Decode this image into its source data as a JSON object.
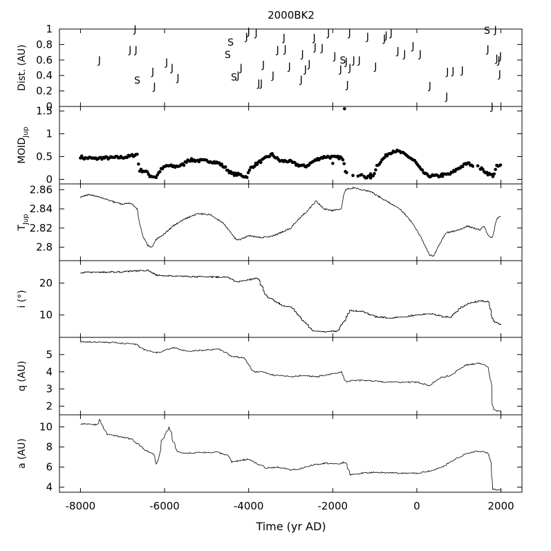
{
  "chart_data": {
    "title": "2000BK2",
    "type": "multi-panel",
    "shared_x": {
      "label": "Time (yr AD)",
      "range": [
        -8500,
        2500
      ],
      "ticks": [
        -8000,
        -6000,
        -4000,
        -2000,
        0,
        2000
      ],
      "tick_labels": [
        "-8000",
        "-6000",
        "-4000",
        "-2000",
        "0",
        "2000"
      ]
    },
    "panels": [
      {
        "type": "scatter",
        "id": "dist",
        "ylabel": "Dist. (AU)",
        "ylim": [
          0,
          1
        ],
        "yticks": [
          0,
          0.2,
          0.4,
          0.6,
          0.8,
          1
        ],
        "ytick_labels": [
          "0",
          "0.2",
          "0.4",
          "0.6",
          "0.8",
          "1"
        ],
        "markers": [
          {
            "x": -7550,
            "y": 0.6,
            "label": "J"
          },
          {
            "x": -6700,
            "y": 1.0,
            "label": "J"
          },
          {
            "x": -6820,
            "y": 0.73,
            "label": "J"
          },
          {
            "x": -6680,
            "y": 0.73,
            "label": "J"
          },
          {
            "x": -6650,
            "y": 0.34,
            "label": "S"
          },
          {
            "x": -6280,
            "y": 0.45,
            "label": "J"
          },
          {
            "x": -6240,
            "y": 0.26,
            "label": "J"
          },
          {
            "x": -5950,
            "y": 0.57,
            "label": "J"
          },
          {
            "x": -5820,
            "y": 0.5,
            "label": "J"
          },
          {
            "x": -5680,
            "y": 0.37,
            "label": "J"
          },
          {
            "x": -4500,
            "y": 0.67,
            "label": "S"
          },
          {
            "x": -4430,
            "y": 0.83,
            "label": "S"
          },
          {
            "x": -4350,
            "y": 0.38,
            "label": "S"
          },
          {
            "x": -4250,
            "y": 0.4,
            "label": "J"
          },
          {
            "x": -4180,
            "y": 0.5,
            "label": "J"
          },
          {
            "x": -4050,
            "y": 0.9,
            "label": "J"
          },
          {
            "x": -4000,
            "y": 0.97,
            "label": "J"
          },
          {
            "x": -3820,
            "y": 0.95,
            "label": "J"
          },
          {
            "x": -3760,
            "y": 0.3,
            "label": "J"
          },
          {
            "x": -3700,
            "y": 0.3,
            "label": "J"
          },
          {
            "x": -3650,
            "y": 0.54,
            "label": "J"
          },
          {
            "x": -3420,
            "y": 0.4,
            "label": "J"
          },
          {
            "x": -3310,
            "y": 0.73,
            "label": "J"
          },
          {
            "x": -3160,
            "y": 0.89,
            "label": "J"
          },
          {
            "x": -3130,
            "y": 0.74,
            "label": "J"
          },
          {
            "x": -3030,
            "y": 0.52,
            "label": "J"
          },
          {
            "x": -2750,
            "y": 0.35,
            "label": "J"
          },
          {
            "x": -2720,
            "y": 0.68,
            "label": "J"
          },
          {
            "x": -2650,
            "y": 0.48,
            "label": "J"
          },
          {
            "x": -2560,
            "y": 0.55,
            "label": "J"
          },
          {
            "x": -2440,
            "y": 0.89,
            "label": "J"
          },
          {
            "x": -2420,
            "y": 0.77,
            "label": "J"
          },
          {
            "x": -2250,
            "y": 0.76,
            "label": "J"
          },
          {
            "x": -2100,
            "y": 0.95,
            "label": "J"
          },
          {
            "x": -1950,
            "y": 0.65,
            "label": "J"
          },
          {
            "x": -1810,
            "y": 0.48,
            "label": "J"
          },
          {
            "x": -1760,
            "y": 0.6,
            "label": "S"
          },
          {
            "x": -1680,
            "y": 0.58,
            "label": "J"
          },
          {
            "x": -1650,
            "y": 0.28,
            "label": "J"
          },
          {
            "x": -1600,
            "y": 0.95,
            "label": "J"
          },
          {
            "x": -1590,
            "y": 0.5,
            "label": "J"
          },
          {
            "x": -1500,
            "y": 0.6,
            "label": "J"
          },
          {
            "x": -1370,
            "y": 0.6,
            "label": "J"
          },
          {
            "x": -1170,
            "y": 0.9,
            "label": "J"
          },
          {
            "x": -980,
            "y": 0.52,
            "label": "J"
          },
          {
            "x": -770,
            "y": 0.88,
            "label": "J"
          },
          {
            "x": -730,
            "y": 0.92,
            "label": "J"
          },
          {
            "x": -610,
            "y": 0.95,
            "label": "J"
          },
          {
            "x": -450,
            "y": 0.72,
            "label": "J"
          },
          {
            "x": -290,
            "y": 0.68,
            "label": "J"
          },
          {
            "x": -90,
            "y": 0.78,
            "label": "J"
          },
          {
            "x": 80,
            "y": 0.68,
            "label": "J"
          },
          {
            "x": 310,
            "y": 0.27,
            "label": "J"
          },
          {
            "x": 710,
            "y": 0.13,
            "label": "J"
          },
          {
            "x": 730,
            "y": 0.45,
            "label": "J"
          },
          {
            "x": 860,
            "y": 0.46,
            "label": "J"
          },
          {
            "x": 1080,
            "y": 0.47,
            "label": "J"
          },
          {
            "x": 1670,
            "y": 0.98,
            "label": "S"
          },
          {
            "x": 1690,
            "y": 0.74,
            "label": "J"
          },
          {
            "x": 1790,
            "y": 0.0,
            "label": "J"
          },
          {
            "x": 1870,
            "y": 0.99,
            "label": "J"
          },
          {
            "x": 1900,
            "y": 0.62,
            "label": "J"
          },
          {
            "x": 1950,
            "y": 0.6,
            "label": "J"
          },
          {
            "x": 1970,
            "y": 0.42,
            "label": "J"
          },
          {
            "x": 1990,
            "y": 0.65,
            "label": "J"
          }
        ]
      },
      {
        "type": "scatter",
        "id": "moid",
        "ylabel": "MOID",
        "ylabel_sub": "Jup",
        "ylim": [
          -0.1,
          1.6
        ],
        "yticks": [
          0,
          0.5,
          1,
          1.5
        ],
        "ytick_labels": [
          "0",
          "0.5",
          "1",
          "1.5"
        ],
        "anchors": [
          [
            -8000,
            0.5
          ],
          [
            -7900,
            0.46
          ],
          [
            -7800,
            0.47
          ],
          [
            -7650,
            0.45
          ],
          [
            -7500,
            0.47
          ],
          [
            -7300,
            0.47
          ],
          [
            -7100,
            0.48
          ],
          [
            -6900,
            0.49
          ],
          [
            -6650,
            0.55
          ],
          [
            -6600,
            0.2
          ],
          [
            -6450,
            0.18
          ],
          [
            -6350,
            0.08
          ],
          [
            -6200,
            0.05
          ],
          [
            -6100,
            0.2
          ],
          [
            -5950,
            0.3
          ],
          [
            -5750,
            0.28
          ],
          [
            -5550,
            0.32
          ],
          [
            -5450,
            0.43
          ],
          [
            -5200,
            0.41
          ],
          [
            -4900,
            0.4
          ],
          [
            -4700,
            0.35
          ],
          [
            -4550,
            0.25
          ],
          [
            -4400,
            0.12
          ],
          [
            -4200,
            0.1
          ],
          [
            -4050,
            0.05
          ],
          [
            -3950,
            0.25
          ],
          [
            -3800,
            0.35
          ],
          [
            -3650,
            0.43
          ],
          [
            -3450,
            0.55
          ],
          [
            -3250,
            0.4
          ],
          [
            -3050,
            0.4
          ],
          [
            -2850,
            0.32
          ],
          [
            -2650,
            0.28
          ],
          [
            -2450,
            0.4
          ],
          [
            -2300,
            0.47
          ],
          [
            -2150,
            0.5
          ],
          [
            -1950,
            0.48
          ],
          [
            -1800,
            0.48
          ],
          [
            -1750,
            0.4
          ],
          [
            -1700,
            0.2
          ],
          [
            -1550,
            0.05
          ],
          [
            -1350,
            0.1
          ],
          [
            -1200,
            0.05
          ],
          [
            -1050,
            0.05
          ],
          [
            -950,
            0.3
          ],
          [
            -850,
            0.4
          ],
          [
            -700,
            0.55
          ],
          [
            -550,
            0.63
          ],
          [
            -400,
            0.6
          ],
          [
            -200,
            0.5
          ],
          [
            -50,
            0.4
          ],
          [
            100,
            0.2
          ],
          [
            250,
            0.08
          ],
          [
            500,
            0.07
          ],
          [
            800,
            0.12
          ],
          [
            1000,
            0.25
          ],
          [
            1200,
            0.35
          ],
          [
            1400,
            0.3
          ],
          [
            1550,
            0.22
          ],
          [
            1700,
            0.12
          ],
          [
            1820,
            0.08
          ],
          [
            1900,
            0.28
          ],
          [
            2000,
            0.3
          ]
        ],
        "extra_points": [
          [
            -1720,
            1.55
          ],
          [
            -3850,
            0.3
          ],
          [
            -2000,
            0.35
          ],
          [
            -1100,
            0.12
          ],
          [
            600,
            0.12
          ]
        ]
      },
      {
        "type": "line",
        "id": "tjup",
        "ylabel": "T",
        "ylabel_sub": "Jup",
        "ylim": [
          2.786,
          2.866
        ],
        "yticks": [
          2.8,
          2.82,
          2.84,
          2.86
        ],
        "ytick_labels": [
          "2.8",
          "2.82",
          "2.84",
          "2.86"
        ],
        "x": [
          -8000,
          -7800,
          -7600,
          -7400,
          -7200,
          -7000,
          -6800,
          -6650,
          -6600,
          -6500,
          -6400,
          -6300,
          -6200,
          -6000,
          -5800,
          -5500,
          -5200,
          -4900,
          -4600,
          -4400,
          -4300,
          -4200,
          -4000,
          -3700,
          -3400,
          -3000,
          -2800,
          -2600,
          -2500,
          -2400,
          -2200,
          -2000,
          -1800,
          -1750,
          -1700,
          -1500,
          -1300,
          -1100,
          -800,
          -400,
          -100,
          100,
          300,
          400,
          500,
          600,
          700,
          1000,
          1200,
          1500,
          1600,
          1700,
          1800,
          1900,
          2000
        ],
        "y": [
          2.852,
          2.855,
          2.853,
          2.85,
          2.847,
          2.845,
          2.846,
          2.84,
          2.825,
          2.81,
          2.802,
          2.8,
          2.808,
          2.814,
          2.822,
          2.83,
          2.835,
          2.834,
          2.825,
          2.814,
          2.808,
          2.808,
          2.812,
          2.81,
          2.812,
          2.82,
          2.83,
          2.838,
          2.843,
          2.848,
          2.84,
          2.838,
          2.84,
          2.852,
          2.86,
          2.862,
          2.86,
          2.858,
          2.85,
          2.84,
          2.825,
          2.81,
          2.792,
          2.791,
          2.8,
          2.808,
          2.815,
          2.818,
          2.822,
          2.818,
          2.822,
          2.812,
          2.81,
          2.83,
          2.832
        ]
      },
      {
        "type": "line",
        "id": "incl",
        "ylabel": "i (°)",
        "ylim": [
          3,
          27
        ],
        "yticks": [
          10,
          20
        ],
        "ytick_labels": [
          "10",
          "20"
        ],
        "x": [
          -8000,
          -7000,
          -6400,
          -6200,
          -5500,
          -4500,
          -4300,
          -4000,
          -3800,
          -3600,
          -3200,
          -3000,
          -2700,
          -2500,
          -2300,
          -1900,
          -1700,
          -1600,
          -1300,
          -1000,
          -600,
          0,
          300,
          600,
          800,
          1000,
          1200,
          1500,
          1700,
          1800,
          1900,
          2000
        ],
        "y": [
          23.3,
          23.5,
          24.0,
          22.5,
          22.0,
          21.8,
          20.2,
          21.0,
          21.5,
          16.0,
          13.0,
          12.5,
          8.0,
          5.0,
          4.8,
          5.0,
          9.0,
          11.5,
          11.0,
          9.5,
          9.0,
          10.0,
          10.5,
          9.5,
          9.3,
          12.0,
          13.5,
          14.5,
          14.0,
          8.0,
          7.5,
          7.0
        ]
      },
      {
        "type": "line",
        "id": "q",
        "ylabel": "q (AU)",
        "ylim": [
          1.5,
          6.0
        ],
        "yticks": [
          2,
          3,
          4,
          5
        ],
        "ytick_labels": [
          "2",
          "3",
          "4",
          "5"
        ],
        "x": [
          -8000,
          -7200,
          -6700,
          -6500,
          -6200,
          -5800,
          -5500,
          -4700,
          -4400,
          -4100,
          -3900,
          -3700,
          -3400,
          -3000,
          -2700,
          -2400,
          -2000,
          -1800,
          -1700,
          -1500,
          -1200,
          -700,
          0,
          300,
          500,
          800,
          1000,
          1200,
          1500,
          1600,
          1700,
          1750,
          1800,
          2000
        ],
        "y": [
          5.75,
          5.7,
          5.6,
          5.3,
          5.1,
          5.4,
          5.2,
          5.3,
          4.9,
          4.8,
          4.0,
          4.0,
          3.8,
          3.7,
          3.8,
          3.7,
          3.9,
          4.0,
          3.4,
          3.5,
          3.5,
          3.4,
          3.4,
          3.2,
          3.6,
          3.8,
          4.2,
          4.4,
          4.5,
          4.4,
          4.2,
          3.5,
          1.8,
          1.7
        ]
      },
      {
        "type": "line",
        "id": "a",
        "ylabel": "a (AU)",
        "ylim": [
          3.5,
          11.2
        ],
        "yticks": [
          4,
          6,
          8,
          10
        ],
        "ytick_labels": [
          "4",
          "6",
          "8",
          "10"
        ],
        "x": [
          -8000,
          -7600,
          -7550,
          -7400,
          -6800,
          -6500,
          -6250,
          -6200,
          -6100,
          -6000,
          -5900,
          -5800,
          -5700,
          -5500,
          -4800,
          -4500,
          -4400,
          -4000,
          -3600,
          -3300,
          -3000,
          -2800,
          -2500,
          -2200,
          -1900,
          -1700,
          -1600,
          -1300,
          -1000,
          -500,
          0,
          300,
          600,
          900,
          1200,
          1500,
          1700,
          1750,
          1800,
          2000
        ],
        "y": [
          10.3,
          10.2,
          10.8,
          9.3,
          8.8,
          7.8,
          7.2,
          6.3,
          8.5,
          9.2,
          10.0,
          8.5,
          7.5,
          7.4,
          7.5,
          7.2,
          6.5,
          6.8,
          5.9,
          6.0,
          5.7,
          5.8,
          6.2,
          6.4,
          6.3,
          6.5,
          5.2,
          5.4,
          5.5,
          5.4,
          5.4,
          5.6,
          6.0,
          6.8,
          7.4,
          7.6,
          7.4,
          6.5,
          3.8,
          3.7
        ]
      }
    ]
  }
}
